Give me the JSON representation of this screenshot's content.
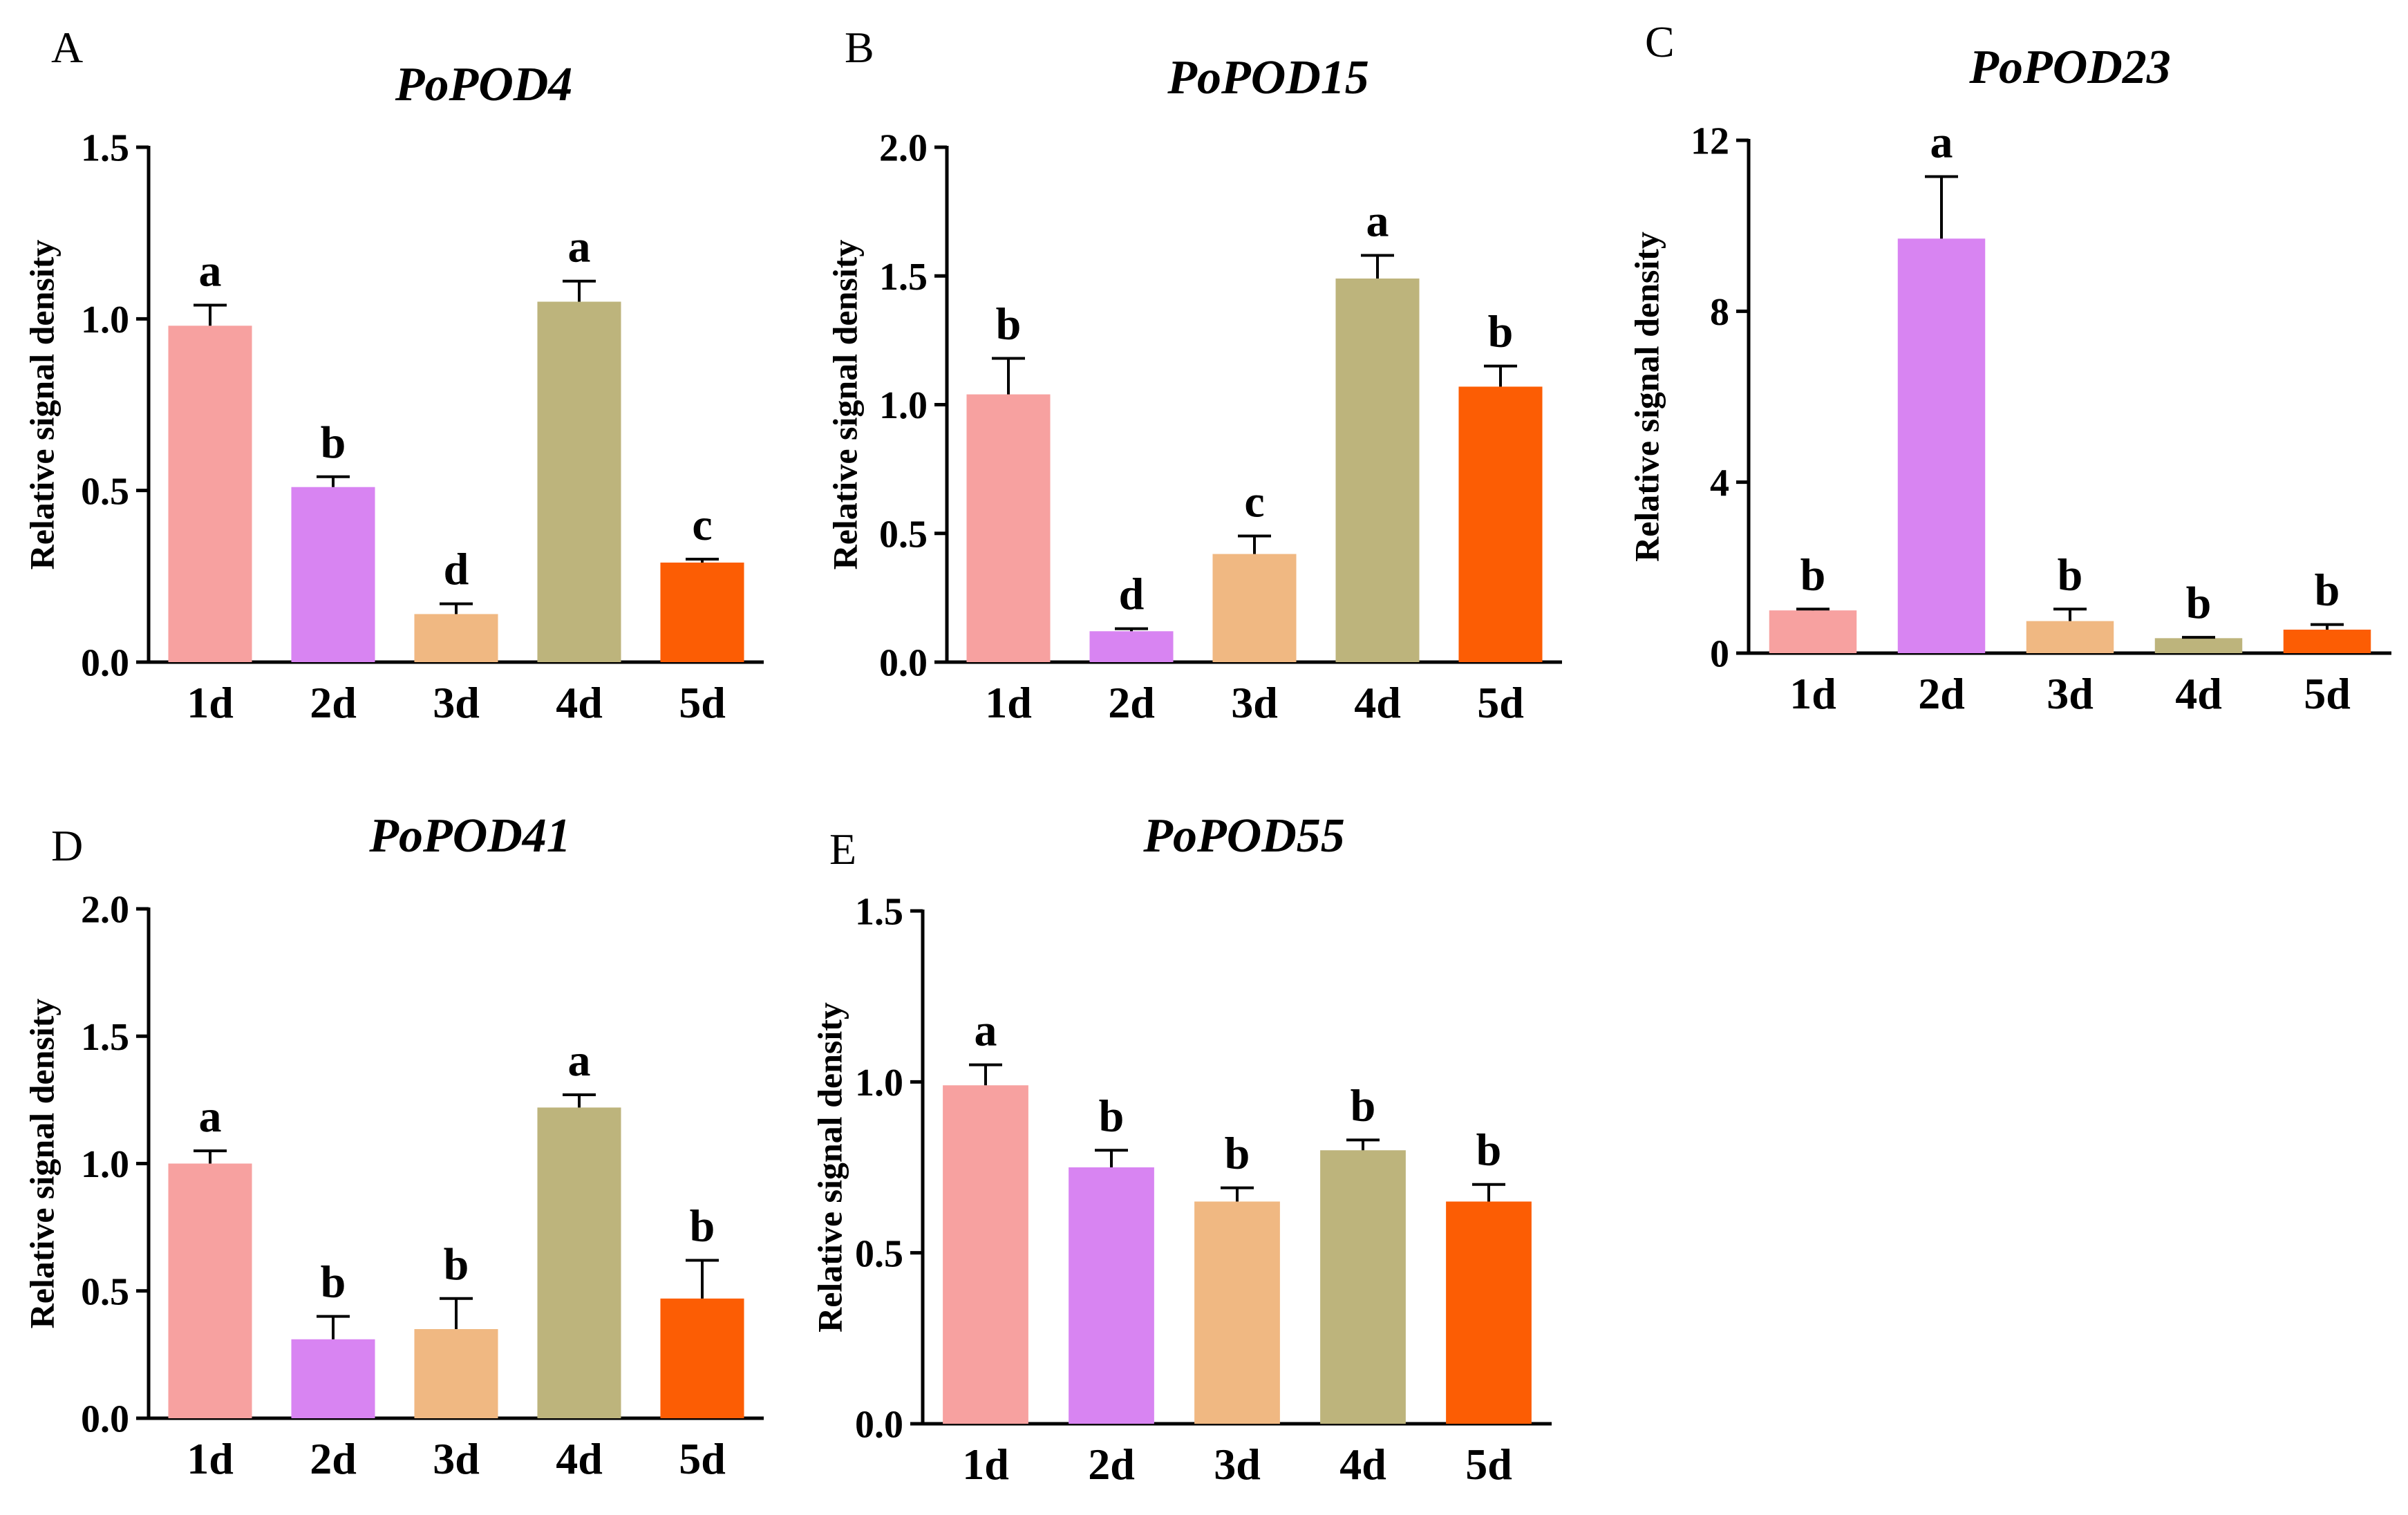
{
  "figure": {
    "panel_order": [
      "A",
      "B",
      "C",
      "D",
      "E"
    ]
  },
  "colors": [
    "#f7a1a0",
    "#d884f2",
    "#f0b882",
    "#bdb47c",
    "#fc5d04"
  ],
  "chart_data": [
    {
      "panel_letter": "A",
      "type": "bar",
      "title": "PoPOD4",
      "ylabel": "Relative signal density",
      "categories": [
        "1d",
        "2d",
        "3d",
        "4d",
        "5d"
      ],
      "values": [
        0.98,
        0.51,
        0.14,
        1.05,
        0.29
      ],
      "errors": [
        0.06,
        0.03,
        0.03,
        0.06,
        0.01
      ],
      "significance": [
        "a",
        "b",
        "d",
        "a",
        "c"
      ],
      "ylim": [
        0,
        1.5
      ],
      "yticks": [
        0.0,
        0.5,
        1.0,
        1.5
      ],
      "ytick_labels": [
        "0.0",
        "0.5",
        "1.0",
        "1.5"
      ]
    },
    {
      "panel_letter": "B",
      "type": "bar",
      "title": "PoPOD15",
      "ylabel": "Relative signal density",
      "categories": [
        "1d",
        "2d",
        "3d",
        "4d",
        "5d"
      ],
      "values": [
        1.04,
        0.12,
        0.42,
        1.49,
        1.07
      ],
      "errors": [
        0.14,
        0.01,
        0.07,
        0.09,
        0.08
      ],
      "significance": [
        "b",
        "d",
        "c",
        "a",
        "b"
      ],
      "ylim": [
        0,
        2.0
      ],
      "yticks": [
        0.0,
        0.5,
        1.0,
        1.5,
        2.0
      ],
      "ytick_labels": [
        "0.0",
        "0.5",
        "1.0",
        "1.5",
        "2.0"
      ]
    },
    {
      "panel_letter": "C",
      "type": "bar",
      "title": "PoPOD23",
      "ylabel": "Relative signal density",
      "categories": [
        "1d",
        "2d",
        "3d",
        "4d",
        "5d"
      ],
      "values": [
        1.0,
        9.7,
        0.75,
        0.35,
        0.55
      ],
      "errors": [
        0.03,
        1.45,
        0.28,
        0.02,
        0.12
      ],
      "significance": [
        "b",
        "a",
        "b",
        "b",
        "b"
      ],
      "ylim": [
        0,
        12
      ],
      "yticks": [
        0,
        4,
        8,
        12
      ],
      "ytick_labels": [
        "0",
        "4",
        "8",
        "12"
      ]
    },
    {
      "panel_letter": "D",
      "type": "bar",
      "title": "PoPOD41",
      "ylabel": "Relative signal density",
      "categories": [
        "1d",
        "2d",
        "3d",
        "4d",
        "5d"
      ],
      "values": [
        1.0,
        0.31,
        0.35,
        1.22,
        0.47
      ],
      "errors": [
        0.05,
        0.09,
        0.12,
        0.05,
        0.15
      ],
      "significance": [
        "a",
        "b",
        "b",
        "a",
        "b"
      ],
      "ylim": [
        0,
        2.0
      ],
      "yticks": [
        0.0,
        0.5,
        1.0,
        1.5,
        2.0
      ],
      "ytick_labels": [
        "0.0",
        "0.5",
        "1.0",
        "1.5",
        "2.0"
      ]
    },
    {
      "panel_letter": "E",
      "type": "bar",
      "title": "PoPOD55",
      "ylabel": "Relative signal density",
      "categories": [
        "1d",
        "2d",
        "3d",
        "4d",
        "5d"
      ],
      "values": [
        0.99,
        0.75,
        0.65,
        0.8,
        0.65
      ],
      "errors": [
        0.06,
        0.05,
        0.04,
        0.03,
        0.05
      ],
      "significance": [
        "a",
        "b",
        "b",
        "b",
        "b"
      ],
      "ylim": [
        0,
        1.5
      ],
      "yticks": [
        0.0,
        0.5,
        1.0,
        1.5
      ],
      "ytick_labels": [
        "0.0",
        "0.5",
        "1.0",
        "1.5"
      ]
    }
  ]
}
